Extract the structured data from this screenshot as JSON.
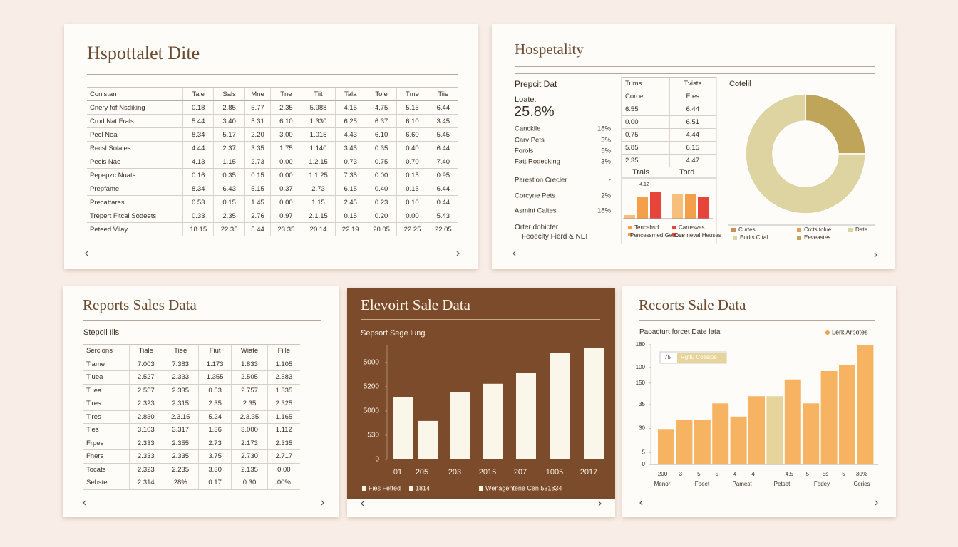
{
  "panel1": {
    "title": "Hspottalet Dite",
    "table": {
      "header": [
        "Conistan",
        "Tale",
        "Sals",
        "Mne",
        "Tne",
        "Tiit",
        "Tala",
        "Tole",
        "Tme",
        "Tiie"
      ],
      "rows": [
        [
          "Cnery fof Nsdiking",
          "0.18",
          "2.85",
          "5.77",
          "2.35",
          "5.988",
          "4.15",
          "4.75",
          "5.15",
          "6.44"
        ],
        [
          "Crod Nat Frals",
          "5.44",
          "3.40",
          "5.31",
          "6.10",
          "1.330",
          "6.25",
          "6.37",
          "6.10",
          "3.45"
        ],
        [
          "Pecl Nea",
          "8.34",
          "5.17",
          "2.20",
          "3.00",
          "1.015",
          "4.43",
          "6.10",
          "6.60",
          "5.45"
        ],
        [
          "Recsl Solales",
          "4.44",
          "2.37",
          "3.35",
          "1.75",
          "1.140",
          "3.45",
          "0.35",
          "0.40",
          "6.44"
        ],
        [
          "Pecls Nae",
          "4.13",
          "1.15",
          "2.73",
          "0.00",
          "1.2.15",
          "0.73",
          "0.75",
          "0.70",
          "7.40"
        ],
        [
          "Pepepzc Nuats",
          "0.16",
          "0.35",
          "0.15",
          "0.00",
          "1.1.25",
          "7.35",
          "0.00",
          "0.15",
          "0.95"
        ],
        [
          "Prepfame",
          "8.34",
          "6.43",
          "5.15",
          "0.37",
          "2.73",
          "6.15",
          "0.40",
          "0.15",
          "6.44"
        ],
        [
          "Precattares",
          "0.53",
          "0.15",
          "1.45",
          "0.00",
          "1.15",
          "2.45",
          "0.23",
          "0.10",
          "0.44"
        ],
        [
          "Trepert Fitcal Sodeets",
          "0.33",
          "2.35",
          "2.76",
          "0.97",
          "2.1.15",
          "0.15",
          "0.20",
          "0.00",
          "5.43"
        ],
        [
          "Peteed Vilay",
          "18.15",
          "22.35",
          "5.44",
          "23.35",
          "20.14",
          "22.19",
          "20.05",
          "22.25",
          "22.05"
        ]
      ]
    }
  },
  "panel2": {
    "title": "Hospetality",
    "heading": "Prepcit Dat",
    "label": "Loate:",
    "big": "25.8%",
    "items": [
      [
        "Cancklle",
        "18%"
      ],
      [
        "Carv Pets",
        "3%"
      ],
      [
        "Forols",
        "5%"
      ],
      [
        "Fatt Rodecking",
        "3%"
      ],
      [
        "Parestion Crecler",
        "-"
      ],
      [
        "Corcyne Pets",
        "2%"
      ],
      [
        "Asmint Caltes",
        "18%"
      ]
    ],
    "footer": [
      "Orter dohicter",
      "Feoecity Fierd & NEI"
    ],
    "mini_table": {
      "header": [
        "Tums",
        "Tvists"
      ],
      "rows": [
        [
          "Corce",
          "Ftes"
        ],
        [
          "6.55",
          "6.44"
        ],
        [
          "0.00",
          "6.51"
        ],
        [
          "0.75",
          "4.44"
        ],
        [
          "5.85",
          "6.15"
        ],
        [
          "2.35",
          "4.47"
        ]
      ]
    },
    "mini_chart": {
      "type": "bar",
      "headers": [
        "Trals",
        "Tord"
      ],
      "annotation": "4.12",
      "series": [
        {
          "color": "#f6c07c",
          "values": [
            5,
            35
          ]
        },
        {
          "color": "#f4a04a",
          "values": [
            30,
            35
          ]
        },
        {
          "color": "#e8453a",
          "values": [
            38,
            31
          ]
        }
      ],
      "legend": [
        [
          "Tencebsd",
          "Pencessmed Geaoes"
        ],
        [
          "Carresves",
          "Cornneval Heuses"
        ]
      ]
    },
    "donut": {
      "type": "pie",
      "title": "Cotelil",
      "values": [
        25,
        75
      ],
      "colors": [
        "#bfa55a",
        "#ddd4a2"
      ],
      "legend": [
        "Curtes",
        "Crcts tolue",
        "Date",
        "Eurits Cttal",
        "Eeveastes"
      ]
    }
  },
  "panel3": {
    "title": "Reports Sales Data",
    "subtitle": "Stepoll Ilis",
    "table": {
      "header": [
        "Sercions",
        "Tiale",
        "Tiee",
        "Fiut",
        "Wiate",
        "Fiile"
      ],
      "rows": [
        [
          "Tiame",
          "7.003",
          "7.383",
          "1.173",
          "1.833",
          "1.105"
        ],
        [
          "Tiuea",
          "2.527",
          "2.333",
          "1.355",
          "2.505",
          "2.583"
        ],
        [
          "Tuea",
          "2.557",
          "2.335",
          "0.53",
          "2.757",
          "1.335"
        ],
        [
          "Tires",
          "2.323",
          "2.315",
          "2.35",
          "2.35",
          "2.325"
        ],
        [
          "Tires",
          "2.830",
          "2.3.15",
          "5.24",
          "2.3.35",
          "1.165"
        ],
        [
          "Ties",
          "3.103",
          "3.317",
          "1.36",
          "3.000",
          "1.112"
        ],
        [
          "Frpes",
          "2.333",
          "2.355",
          "2.73",
          "2.173",
          "2.335"
        ],
        [
          "Fhers",
          "2.333",
          "2.335",
          "3.75",
          "2.730",
          "2.717"
        ],
        [
          "Tocats",
          "2.323",
          "2.235",
          "3.30",
          "2.135",
          "0.00"
        ],
        [
          "Sebste",
          "2.314",
          "28%",
          "0.17",
          "0.30",
          "00%"
        ]
      ]
    }
  },
  "panel4": {
    "chart_data": {
      "type": "bar",
      "title": "Elevoirt Sale Data",
      "subtitle": "Sepsort Sege lung",
      "categories": [
        "01",
        "205",
        "203",
        "2015",
        "207",
        "1005",
        "2017"
      ],
      "values": [
        2560,
        1590,
        2790,
        3120,
        3560,
        4380,
        4590
      ],
      "color": "#fbf6ea",
      "ylim": [
        0,
        4700
      ],
      "yticks": [
        0,
        {
          "value": 1000,
          "label": "530"
        },
        {
          "value": 2000,
          "label": "5000"
        },
        {
          "value": 3000,
          "label": "5200"
        },
        {
          "value": 4000,
          "label": "5000"
        }
      ],
      "legend": [
        "Fies Fetted",
        "1814",
        "Wenagentene Cen 531834"
      ]
    }
  },
  "panel5": {
    "chart_data": {
      "type": "bar",
      "title": "Recorts Sale Data",
      "subtitle": "Paoacturt forcet Date lata",
      "legend": "Lerk Arpotes",
      "categories": [
        "200",
        "3",
        "5",
        "5",
        "4",
        "4",
        null,
        "4.5",
        "5",
        "5s",
        "5",
        "30%"
      ],
      "values": [
        29,
        37,
        37,
        51,
        40,
        57,
        57,
        71,
        51,
        78,
        83,
        100
      ],
      "colors": [
        "#f6b463",
        "#f6b463",
        "#f6b463",
        "#f6b463",
        "#f6b463",
        "#f6b463",
        "#e6d49a",
        "#f6b463",
        "#f6b463",
        "#f6b463",
        "#f6b463",
        "#f6b463"
      ],
      "ylim": [
        0,
        100
      ],
      "yticks": [
        0,
        {
          "value": 10,
          "label": "5"
        },
        {
          "value": 30,
          "label": "30"
        },
        {
          "value": 50,
          "label": "35"
        },
        {
          "value": 68,
          "label": "150"
        },
        {
          "value": 81,
          "label": "100"
        },
        {
          "value": 100,
          "label": "180"
        }
      ],
      "annotation": {
        "value": "75",
        "label": "Rgttu Coasipe"
      },
      "groups": [
        "Menor",
        "Fpeet",
        "Pamest",
        "Petset",
        "Fodey",
        "Ceries"
      ]
    }
  }
}
